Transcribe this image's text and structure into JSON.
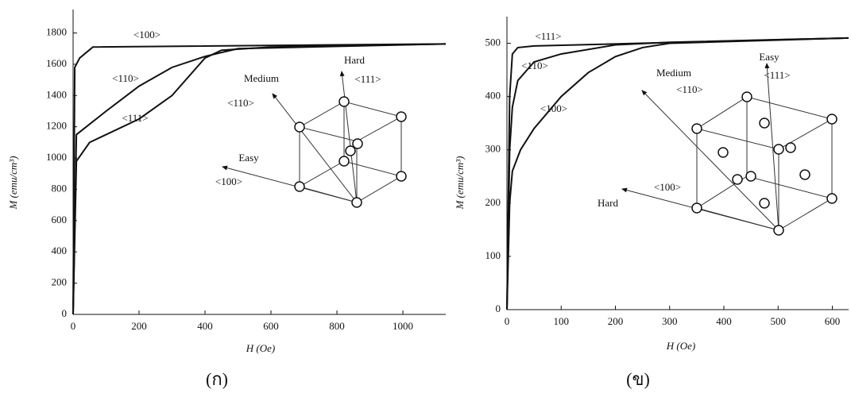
{
  "chart_data": [
    {
      "type": "line",
      "x_label": "H (Oe)",
      "y_label": "M (emu/cm³)",
      "caption": "(ก)",
      "xlim": [
        0,
        1130
      ],
      "ylim": [
        0,
        1950
      ],
      "xticks": [
        0,
        200,
        400,
        600,
        800,
        1000
      ],
      "yticks": [
        0,
        200,
        400,
        600,
        800,
        1000,
        1200,
        1400,
        1600,
        1800
      ],
      "series": [
        {
          "name": "<100>",
          "color": "#111111",
          "x": [
            0,
            5,
            20,
            60,
            1130
          ],
          "values": [
            0,
            1580,
            1640,
            1710,
            1730
          ]
        },
        {
          "name": "<110>",
          "color": "#111111",
          "x": [
            0,
            10,
            100,
            200,
            300,
            400,
            500,
            1130
          ],
          "values": [
            0,
            1150,
            1300,
            1460,
            1580,
            1650,
            1700,
            1730
          ]
        },
        {
          "name": "<111>",
          "color": "#111111",
          "x": [
            0,
            10,
            50,
            200,
            300,
            400,
            450,
            600,
            1130
          ],
          "values": [
            0,
            980,
            1100,
            1250,
            1400,
            1640,
            1690,
            1710,
            1730
          ]
        }
      ],
      "annotations": [
        "Hard",
        "<111>",
        "Medium",
        "<110>",
        "Easy",
        "<100>"
      ]
    },
    {
      "type": "line",
      "x_label": "H (Oe)",
      "y_label": "M (emu/cm³)",
      "caption": "(ข)",
      "xlim": [
        0,
        630
      ],
      "ylim": [
        0,
        550
      ],
      "xticks": [
        0,
        100,
        200,
        300,
        400,
        500,
        600
      ],
      "yticks": [
        0,
        100,
        200,
        300,
        400,
        500
      ],
      "series": [
        {
          "name": "<111>",
          "color": "#111111",
          "x": [
            0,
            5,
            10,
            20,
            50,
            630
          ],
          "values": [
            0,
            400,
            480,
            492,
            495,
            510
          ]
        },
        {
          "name": "<110>",
          "color": "#111111",
          "x": [
            0,
            5,
            10,
            20,
            50,
            100,
            200,
            300,
            630
          ],
          "values": [
            0,
            300,
            380,
            430,
            465,
            480,
            497,
            502,
            510
          ]
        },
        {
          "name": "<100>",
          "color": "#111111",
          "x": [
            0,
            5,
            10,
            25,
            50,
            100,
            150,
            200,
            250,
            300,
            630
          ],
          "values": [
            0,
            200,
            260,
            300,
            340,
            400,
            445,
            475,
            492,
            500,
            510
          ]
        }
      ],
      "annotations": [
        "Medium",
        "<110>",
        "Easy",
        "<111>",
        "<100>",
        "Hard"
      ]
    }
  ]
}
